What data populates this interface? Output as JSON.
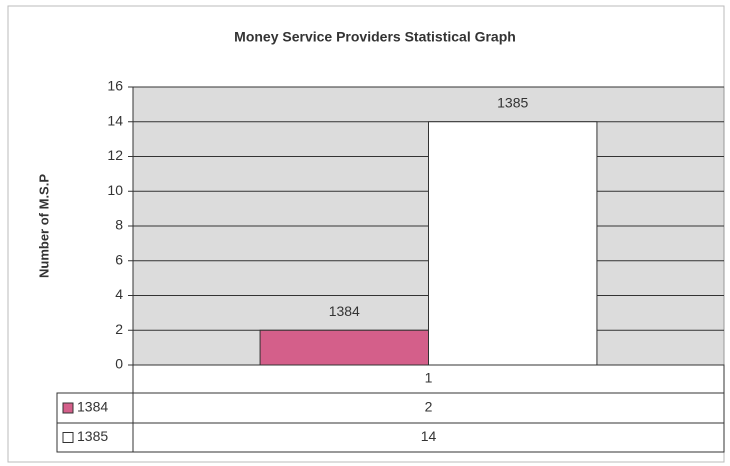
{
  "chart_data": {
    "type": "bar",
    "title": "Money Service Providers Statistical Graph",
    "y_label": "Number of M.S.P",
    "categories": [
      "1"
    ],
    "series": [
      {
        "name": "1384",
        "color": "#d45f8a",
        "values": [
          2
        ]
      },
      {
        "name": "1385",
        "color": "#ffffff",
        "values": [
          14
        ]
      }
    ],
    "ylim": [
      0,
      16
    ],
    "yticks": [
      0,
      2,
      4,
      6,
      8,
      10,
      12,
      14,
      16
    ],
    "grid": true,
    "data_table": true
  }
}
